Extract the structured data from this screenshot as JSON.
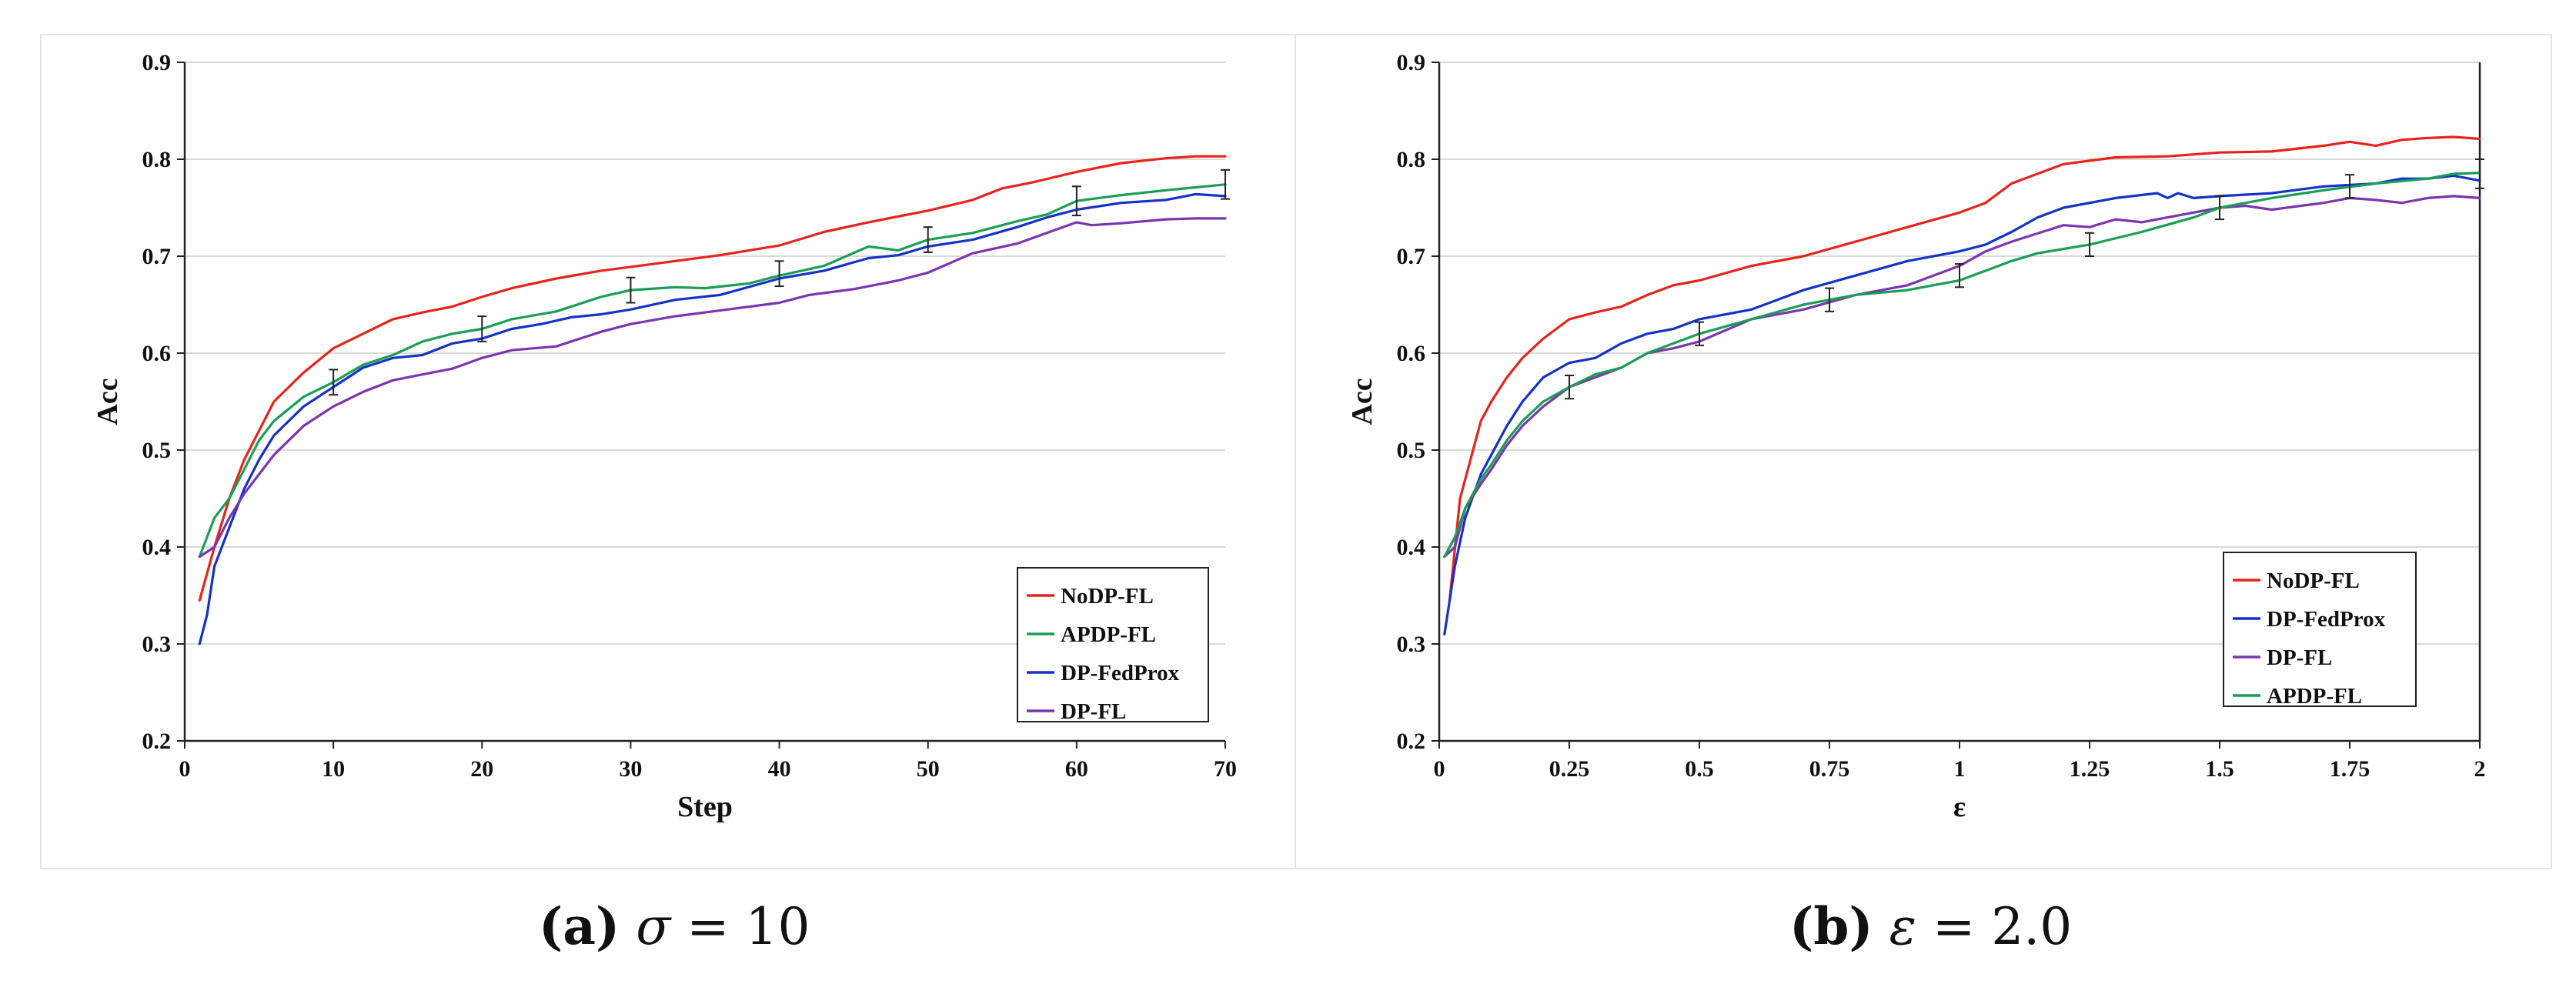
{
  "chart_data": [
    {
      "id": "a",
      "type": "line",
      "xlabel": "Step",
      "ylabel": "Acc",
      "xlim": [
        0,
        70
      ],
      "ylim": [
        0.2,
        0.9
      ],
      "xticks": [
        0,
        10,
        20,
        30,
        40,
        50,
        60,
        70
      ],
      "xtick_labels": [
        "0",
        "10",
        "20",
        "30",
        "40",
        "50",
        "60",
        "70"
      ],
      "yticks": [
        0.2,
        0.3,
        0.4,
        0.5,
        0.6,
        0.7,
        0.8,
        0.9
      ],
      "ytick_labels": [
        "0.2",
        "0.3",
        "0.4",
        "0.5",
        "0.6",
        "0.7",
        "0.8",
        "0.9"
      ],
      "grid": true,
      "legend_position": "bottom-right",
      "legend_order": [
        "NoDP-FL",
        "APDP-FL",
        "DP-FedProx",
        "DP-FL"
      ],
      "error_bars": [
        {
          "x": 10,
          "y": 0.57,
          "err": 0.013
        },
        {
          "x": 20,
          "y": 0.625,
          "err": 0.013
        },
        {
          "x": 30,
          "y": 0.665,
          "err": 0.013
        },
        {
          "x": 40,
          "y": 0.682,
          "err": 0.013
        },
        {
          "x": 50,
          "y": 0.717,
          "err": 0.013
        },
        {
          "x": 60,
          "y": 0.757,
          "err": 0.015
        },
        {
          "x": 70,
          "y": 0.774,
          "err": 0.015
        }
      ],
      "series": [
        {
          "name": "NoDP-FL",
          "color": "#e8231c",
          "x": [
            1,
            2,
            3,
            4,
            5,
            6,
            8,
            10,
            12,
            14,
            16,
            18,
            20,
            22,
            25,
            28,
            30,
            33,
            36,
            40,
            43,
            46,
            50,
            53,
            55,
            57,
            60,
            63,
            66,
            68,
            70
          ],
          "y": [
            0.345,
            0.4,
            0.45,
            0.49,
            0.52,
            0.55,
            0.58,
            0.605,
            0.62,
            0.635,
            0.642,
            0.648,
            0.658,
            0.667,
            0.677,
            0.685,
            0.689,
            0.695,
            0.701,
            0.711,
            0.725,
            0.735,
            0.747,
            0.758,
            0.77,
            0.776,
            0.787,
            0.796,
            0.801,
            0.803,
            0.803
          ]
        },
        {
          "name": "APDP-FL",
          "color": "#1a9e55",
          "x": [
            1,
            2,
            3,
            4,
            5,
            6,
            8,
            10,
            12,
            14,
            16,
            18,
            20,
            22,
            25,
            28,
            30,
            33,
            35,
            38,
            40,
            43,
            46,
            48,
            50,
            53,
            56,
            58,
            60,
            63,
            66,
            70
          ],
          "y": [
            0.39,
            0.43,
            0.45,
            0.48,
            0.51,
            0.53,
            0.555,
            0.57,
            0.588,
            0.598,
            0.612,
            0.62,
            0.625,
            0.635,
            0.643,
            0.658,
            0.665,
            0.668,
            0.667,
            0.672,
            0.68,
            0.69,
            0.71,
            0.706,
            0.717,
            0.724,
            0.736,
            0.743,
            0.757,
            0.763,
            0.768,
            0.774
          ]
        },
        {
          "name": "DP-FedProx",
          "color": "#1432c8",
          "x": [
            1,
            1.5,
            2,
            3,
            4,
            5,
            6,
            8,
            10,
            12,
            14,
            16,
            18,
            20,
            22,
            24,
            26,
            28,
            30,
            33,
            36,
            40,
            43,
            46,
            48,
            50,
            53,
            56,
            58,
            60,
            63,
            66,
            68,
            70
          ],
          "y": [
            0.3,
            0.33,
            0.38,
            0.42,
            0.46,
            0.49,
            0.515,
            0.545,
            0.565,
            0.585,
            0.595,
            0.598,
            0.61,
            0.615,
            0.625,
            0.63,
            0.637,
            0.64,
            0.645,
            0.655,
            0.66,
            0.677,
            0.685,
            0.698,
            0.701,
            0.71,
            0.717,
            0.73,
            0.74,
            0.748,
            0.755,
            0.758,
            0.764,
            0.762
          ]
        },
        {
          "name": "DP-FL",
          "color": "#7a35b0",
          "x": [
            1,
            2,
            3,
            4,
            5,
            6,
            8,
            10,
            12,
            14,
            16,
            18,
            20,
            22,
            25,
            28,
            30,
            33,
            36,
            40,
            42,
            45,
            48,
            50,
            53,
            56,
            60,
            61,
            63,
            66,
            68,
            70
          ],
          "y": [
            0.39,
            0.4,
            0.43,
            0.455,
            0.475,
            0.495,
            0.525,
            0.545,
            0.56,
            0.572,
            0.578,
            0.584,
            0.595,
            0.603,
            0.607,
            0.622,
            0.63,
            0.638,
            0.644,
            0.652,
            0.66,
            0.666,
            0.675,
            0.683,
            0.703,
            0.713,
            0.735,
            0.732,
            0.734,
            0.738,
            0.739,
            0.739
          ]
        }
      ]
    },
    {
      "id": "b",
      "type": "line",
      "xlabel": "ε",
      "ylabel": "Acc",
      "xlim": [
        0,
        2
      ],
      "ylim": [
        0.2,
        0.9
      ],
      "xticks": [
        0,
        0.25,
        0.5,
        0.75,
        1,
        1.25,
        1.5,
        1.75,
        2
      ],
      "xtick_labels": [
        "0",
        "0.25",
        "0.5",
        "0.75",
        "1",
        "1.25",
        "1.5",
        "1.75",
        "2"
      ],
      "yticks": [
        0.2,
        0.3,
        0.4,
        0.5,
        0.6,
        0.7,
        0.8,
        0.9
      ],
      "ytick_labels": [
        "0.2",
        "0.3",
        "0.4",
        "0.5",
        "0.6",
        "0.7",
        "0.8",
        "0.9"
      ],
      "grid": true,
      "legend_position": "bottom-right",
      "legend_order": [
        "NoDP-FL",
        "DP-FedProx",
        "DP-FL",
        "APDP-FL"
      ],
      "error_bars": [
        {
          "x": 0.25,
          "y": 0.565,
          "err": 0.012
        },
        {
          "x": 0.5,
          "y": 0.62,
          "err": 0.012
        },
        {
          "x": 0.75,
          "y": 0.655,
          "err": 0.012
        },
        {
          "x": 1,
          "y": 0.68,
          "err": 0.012
        },
        {
          "x": 1.25,
          "y": 0.712,
          "err": 0.012
        },
        {
          "x": 1.5,
          "y": 0.75,
          "err": 0.012
        },
        {
          "x": 1.75,
          "y": 0.772,
          "err": 0.012
        },
        {
          "x": 2,
          "y": 0.785,
          "err": 0.015
        }
      ],
      "series": [
        {
          "name": "NoDP-FL",
          "color": "#e8231c",
          "x": [
            0.02,
            0.04,
            0.06,
            0.08,
            0.1,
            0.13,
            0.16,
            0.2,
            0.25,
            0.3,
            0.35,
            0.4,
            0.45,
            0.5,
            0.6,
            0.7,
            0.8,
            0.9,
            1,
            1.05,
            1.1,
            1.2,
            1.3,
            1.4,
            1.5,
            1.6,
            1.7,
            1.75,
            1.8,
            1.85,
            1.9,
            1.95,
            2
          ],
          "y": [
            0.345,
            0.45,
            0.49,
            0.53,
            0.55,
            0.575,
            0.595,
            0.615,
            0.635,
            0.642,
            0.648,
            0.66,
            0.67,
            0.675,
            0.69,
            0.7,
            0.715,
            0.73,
            0.745,
            0.755,
            0.775,
            0.795,
            0.802,
            0.803,
            0.807,
            0.808,
            0.814,
            0.818,
            0.814,
            0.82,
            0.822,
            0.823,
            0.821
          ]
        },
        {
          "name": "DP-FedProx",
          "color": "#1432c8",
          "x": [
            0.01,
            0.03,
            0.05,
            0.08,
            0.1,
            0.13,
            0.16,
            0.2,
            0.25,
            0.3,
            0.35,
            0.4,
            0.45,
            0.5,
            0.6,
            0.7,
            0.8,
            0.9,
            1,
            1.05,
            1.1,
            1.15,
            1.2,
            1.3,
            1.38,
            1.4,
            1.42,
            1.45,
            1.5,
            1.6,
            1.7,
            1.8,
            1.85,
            1.9,
            1.95,
            2
          ],
          "y": [
            0.31,
            0.38,
            0.43,
            0.475,
            0.495,
            0.525,
            0.55,
            0.575,
            0.59,
            0.595,
            0.61,
            0.62,
            0.625,
            0.635,
            0.645,
            0.665,
            0.68,
            0.695,
            0.705,
            0.712,
            0.725,
            0.74,
            0.75,
            0.76,
            0.765,
            0.76,
            0.765,
            0.76,
            0.762,
            0.765,
            0.772,
            0.775,
            0.78,
            0.78,
            0.783,
            0.778
          ]
        },
        {
          "name": "DP-FL",
          "color": "#7a35b0",
          "x": [
            0.01,
            0.03,
            0.05,
            0.08,
            0.1,
            0.13,
            0.16,
            0.2,
            0.25,
            0.3,
            0.35,
            0.4,
            0.45,
            0.5,
            0.6,
            0.7,
            0.8,
            0.9,
            1,
            1.05,
            1.1,
            1.2,
            1.25,
            1.3,
            1.35,
            1.4,
            1.5,
            1.55,
            1.6,
            1.7,
            1.75,
            1.8,
            1.85,
            1.9,
            1.95,
            2
          ],
          "y": [
            0.39,
            0.4,
            0.44,
            0.465,
            0.48,
            0.505,
            0.525,
            0.545,
            0.565,
            0.575,
            0.585,
            0.6,
            0.605,
            0.612,
            0.635,
            0.645,
            0.66,
            0.67,
            0.69,
            0.705,
            0.715,
            0.732,
            0.73,
            0.738,
            0.735,
            0.74,
            0.75,
            0.752,
            0.748,
            0.755,
            0.76,
            0.758,
            0.755,
            0.76,
            0.762,
            0.76
          ]
        },
        {
          "name": "APDP-FL",
          "color": "#1a9e55",
          "x": [
            0.01,
            0.03,
            0.05,
            0.08,
            0.1,
            0.13,
            0.16,
            0.2,
            0.25,
            0.3,
            0.35,
            0.4,
            0.45,
            0.5,
            0.6,
            0.7,
            0.75,
            0.8,
            0.9,
            1,
            1.05,
            1.1,
            1.15,
            1.25,
            1.35,
            1.45,
            1.5,
            1.6,
            1.7,
            1.8,
            1.9,
            1.95,
            2
          ],
          "y": [
            0.39,
            0.41,
            0.44,
            0.47,
            0.485,
            0.51,
            0.53,
            0.55,
            0.565,
            0.578,
            0.585,
            0.6,
            0.61,
            0.62,
            0.635,
            0.65,
            0.655,
            0.66,
            0.665,
            0.675,
            0.685,
            0.695,
            0.703,
            0.712,
            0.725,
            0.74,
            0.75,
            0.76,
            0.768,
            0.775,
            0.78,
            0.785,
            0.786
          ]
        }
      ]
    }
  ],
  "captions": {
    "a": {
      "label": "(a)",
      "symbol": "σ",
      "eq": " = 10"
    },
    "b": {
      "label": "(b)",
      "symbol": "ε",
      "eq": " = 2.0"
    }
  }
}
